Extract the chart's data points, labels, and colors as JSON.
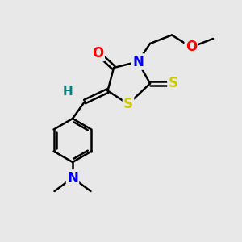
{
  "bg_color": "#e8e8e8",
  "atom_colors": {
    "C": "#000000",
    "N": "#0000ff",
    "O": "#ff0000",
    "S": "#cccc00",
    "H": "#008080"
  },
  "bond_width": 1.8,
  "font_size": 12
}
